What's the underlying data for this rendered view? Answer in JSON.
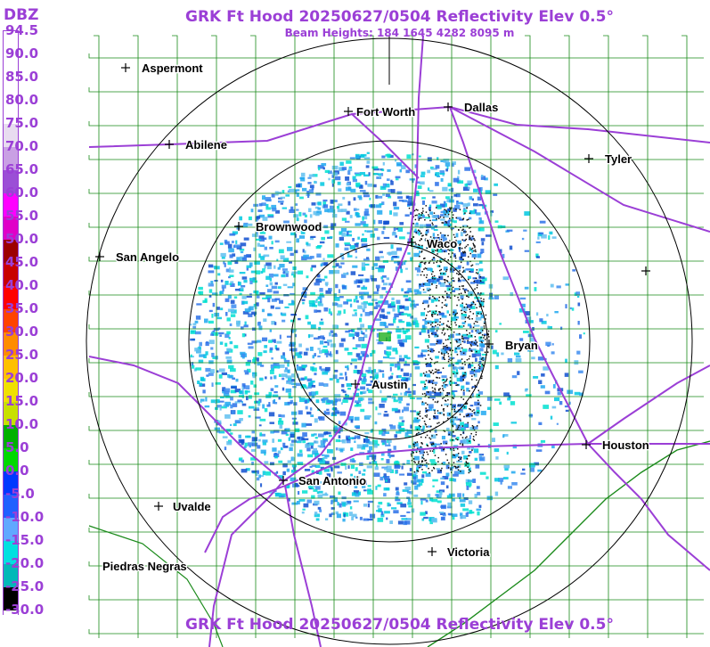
{
  "title": "GRK Ft Hood 20250627/0504 Reflectivity Elev 0.5°",
  "subtitle": "Beam Heights: 184 1645 4282 8095 m",
  "legend": {
    "unit": "DBZ",
    "labels": [
      "94.5",
      "90.0",
      "85.0",
      "80.0",
      "75.0",
      "70.0",
      "65.0",
      "60.0",
      "55.0",
      "50.0",
      "45.0",
      "40.0",
      "35.0",
      "30.0",
      "25.0",
      "20.0",
      "15.0",
      "10.0",
      "5.0",
      "0.0",
      "-5.0",
      "-10.0",
      "-15.0",
      "-20.0",
      "-25.0",
      "-30.0"
    ],
    "colors": [
      "#ffffff",
      "#ffffff",
      "#ffffff",
      "#ffffff",
      "#e8dcf0",
      "#c9a0e4",
      "#9b4fd6",
      "#ff00ff",
      "#e000c8",
      "#9c0000",
      "#c80000",
      "#ff0000",
      "#ff4400",
      "#ff8c00",
      "#ffc000",
      "#f0e000",
      "#c8e000",
      "#00b000",
      "#00d800",
      "#0038ff",
      "#2060ff",
      "#60a8ff",
      "#00e0e0",
      "#00b8b8",
      "#000000",
      "#ffffff"
    ]
  },
  "cities": [
    {
      "name": "Aspermont"
    },
    {
      "name": "Fort Worth"
    },
    {
      "name": "Dallas"
    },
    {
      "name": "Abilene"
    },
    {
      "name": "Tyler"
    },
    {
      "name": "Brownwood"
    },
    {
      "name": "Waco"
    },
    {
      "name": "San Angelo"
    },
    {
      "name": "Bryan"
    },
    {
      "name": "Austin"
    },
    {
      "name": "Houston"
    },
    {
      "name": "San Antonio"
    },
    {
      "name": "Uvalde"
    },
    {
      "name": "Piedras Negras"
    },
    {
      "name": "Victoria"
    },
    {
      "name": ""
    }
  ],
  "colors": {
    "title": "#9b3fd6",
    "county_lines": "#1a8a1a",
    "highways": "#9b3fd6",
    "range_rings": "#000000"
  }
}
